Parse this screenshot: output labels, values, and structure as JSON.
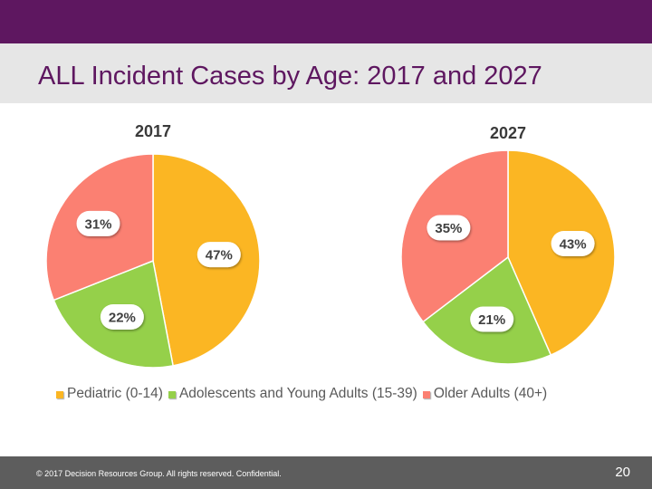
{
  "slide": {
    "title": "ALL Incident Cases by Age: 2017 and 2027",
    "footer": "© 2017 Decision Resources Group. All rights reserved. Confidential.",
    "page_number": "20"
  },
  "chart_data": [
    {
      "type": "pie",
      "title": "2017",
      "categories": [
        "Pediatric (0-14)",
        "Adolescents and Young Adults (15-39)",
        "Older Adults (40+)"
      ],
      "values": [
        47,
        22,
        31
      ],
      "labels": [
        "47%",
        "22%",
        "31%"
      ],
      "colors": [
        "#fbb623",
        "#95d04a",
        "#fb8072"
      ]
    },
    {
      "type": "pie",
      "title": "2027",
      "categories": [
        "Pediatric (0-14)",
        "Adolescents and Young Adults (15-39)",
        "Older Adults (40+)"
      ],
      "values": [
        43,
        21,
        35
      ],
      "labels": [
        "43%",
        "21%",
        "35%"
      ],
      "colors": [
        "#fbb623",
        "#95d04a",
        "#fb8072"
      ]
    }
  ],
  "legend": {
    "placement": "bottom",
    "items": [
      {
        "label": "Pediatric (0-14)",
        "color": "#fbb623"
      },
      {
        "label": "Adolescents and Young Adults (15-39)",
        "color": "#95d04a"
      },
      {
        "label": "Older Adults (40+)",
        "color": "#fb8072"
      }
    ]
  }
}
